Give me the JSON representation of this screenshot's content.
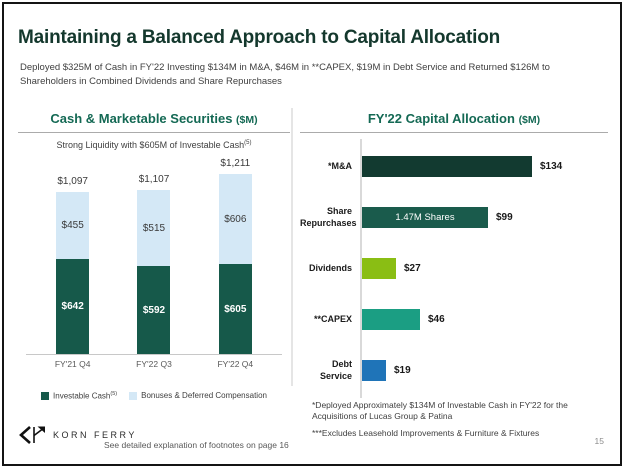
{
  "slide": {
    "title": "Maintaining a Balanced Approach to Capital Allocation",
    "subtitle": "Deployed $325M of Cash in FY'22 Investing $134M in M&A, $46M in **CAPEX, $19M in Debt Service and Returned $126M to Shareholders in Combined Dividends and Share Repurchases",
    "page_number": "15"
  },
  "footer": {
    "logo_text": "KORN FERRY",
    "logo_icon": "korn-ferry-kf-monogram",
    "footnote_link": "See detailed explanation of footnotes on page 16"
  },
  "left_panel": {
    "title": "Cash & Marketable Securities",
    "title_unit": "($M)",
    "subtitle": "Strong Liquidity with $605M of Investable Cash",
    "subtitle_superscript": "(5)",
    "legend": [
      {
        "label": "Investable Cash",
        "superscript": "(5)",
        "color": "#16594a"
      },
      {
        "label": "Bonuses & Deferred Compensation",
        "color": "#d4e8f6"
      }
    ]
  },
  "right_panel": {
    "title": "FY'22 Capital Allocation",
    "title_unit": "($M)",
    "footnotes": [
      "*Deployed Approximately $134M of Investable Cash in FY'22 for the Acquisitions of Lucas Group & Patina",
      "***Excludes Leasehold Improvements & Furniture & Fixtures"
    ]
  },
  "chart_data": [
    {
      "type": "bar",
      "variant": "stacked-vertical",
      "title": "Cash & Marketable Securities ($M)",
      "subtitle": "Strong Liquidity with $605M of Investable Cash(5)",
      "categories": [
        "FY'21 Q4",
        "FY'22 Q3",
        "FY'22 Q4"
      ],
      "series": [
        {
          "name": "Investable Cash(5)",
          "color": "#16594a",
          "values": [
            642,
            592,
            605
          ],
          "labels": [
            "$642",
            "$592",
            "$605"
          ]
        },
        {
          "name": "Bonuses & Deferred Compensation",
          "color": "#d4e8f6",
          "values": [
            455,
            515,
            606
          ],
          "labels": [
            "$455",
            "$515",
            "$606"
          ]
        }
      ],
      "totals": [
        1097,
        1107,
        1211
      ],
      "total_labels": [
        "$1,097",
        "$1,107",
        "$1,211"
      ],
      "ylim": [
        0,
        1300
      ],
      "grid": false,
      "legend_position": "bottom"
    },
    {
      "type": "bar",
      "variant": "horizontal",
      "title": "FY'22 Capital Allocation ($M)",
      "categories": [
        "*M&A",
        "Share\nRepurchases",
        "Dividends",
        "**CAPEX",
        "Debt Service"
      ],
      "values": [
        134,
        99,
        27,
        46,
        19
      ],
      "value_labels": [
        "$134",
        "$99",
        "$27",
        "$46",
        "$19"
      ],
      "bar_colors": [
        "#123a30",
        "#1a5b4c",
        "#8abe14",
        "#1b9e83",
        "#1f74b8"
      ],
      "bar_annotations": [
        "",
        "1.47M Shares",
        "",
        "",
        ""
      ],
      "xlim": [
        0,
        140
      ],
      "grid": false
    }
  ]
}
